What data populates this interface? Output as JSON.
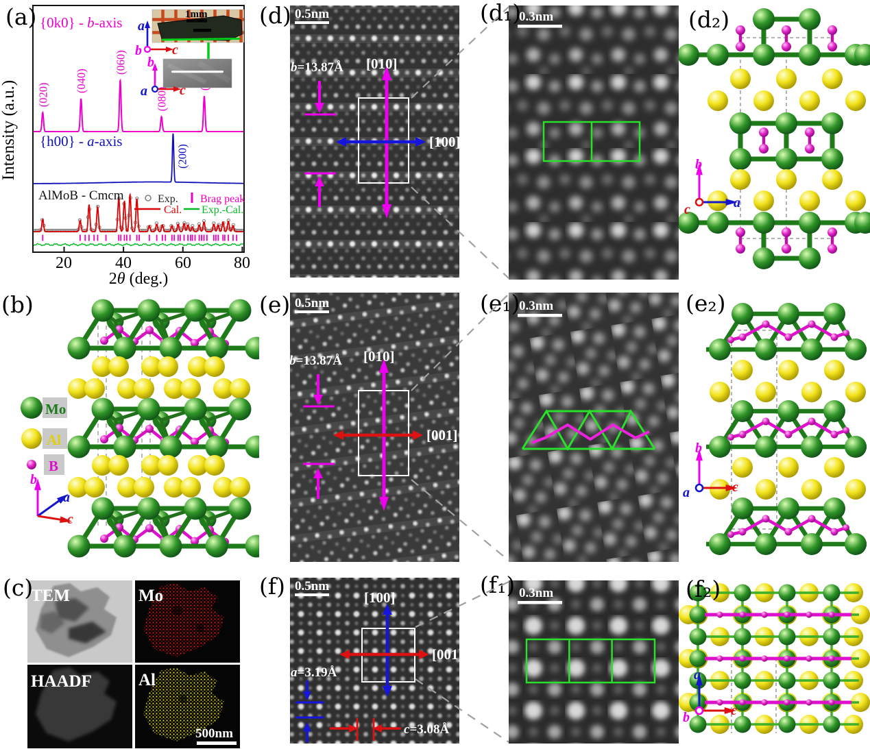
{
  "colors": {
    "mo_green": "#1e7a1e",
    "al_yellow": "#e8d818",
    "b_magenta": "#dd11cc",
    "axis_a_blue": "#1515cc",
    "axis_b_magenta": "#ee00ee",
    "axis_c_red": "#dd1111",
    "series_0k0_magenta": "#ee00cc",
    "series_h00_blue": "#1111bb",
    "cal_red": "#dd0000",
    "diff_green": "#00bb22",
    "exp_gray": "#8c8c8c",
    "overlay_green": "#2ae02a",
    "stem_text_white": "#ffffff"
  },
  "panel_a": {
    "label": "(a)",
    "ylabel": "Intensity (a.u.)",
    "xlabel": {
      "pre": "2",
      "theta": "θ",
      "post": " (deg.)"
    },
    "xticks": [
      "20",
      "40",
      "60",
      "80"
    ],
    "curve1": {
      "pre": "{0k0} - ",
      "it": "b",
      "post": "-axis"
    },
    "curve2": {
      "pre": "{h00} - ",
      "it": "a",
      "post": "-axis"
    },
    "rietveld_label": "AlMoB - Cmcm",
    "legend": {
      "exp": "Exp.",
      "bragg": "Brag peak",
      "cal": "Cal.",
      "diff": "Exp.-Cal."
    },
    "inset1": {
      "scalebar": "1mm",
      "axis_up": "a",
      "axis_origin": "b",
      "axis_right": "c"
    },
    "inset2": {
      "axis_up": "b",
      "axis_origin": "a",
      "axis_right": "c"
    }
  },
  "chart_data": {
    "type": "line",
    "title": "",
    "xlabel": "2θ (deg.)",
    "ylabel": "Intensity (a.u.)",
    "xlim": [
      10,
      80
    ],
    "grid": false,
    "legend_position": "inset bottom",
    "series": [
      {
        "name": "{0k0} - b-axis",
        "color": "#ee00cc",
        "peaks": [
          [
            12.8,
            0.37
          ],
          [
            25.7,
            0.64
          ],
          [
            38.9,
            1.0
          ],
          [
            52.8,
            0.29
          ],
          [
            67.2,
            0.69
          ]
        ],
        "peak_labels": [
          "(020)",
          "(040)",
          "(060)",
          "(080)",
          "(0100)"
        ]
      },
      {
        "name": "{h00} - a-axis",
        "color": "#1111bb",
        "peaks": [
          [
            56.7,
            1.0
          ]
        ],
        "peak_labels": [
          "(200)"
        ]
      },
      {
        "name": "AlMoB - Cmcm Rietveld Cal.",
        "color": "#dd0000",
        "peaks": [
          [
            12.8,
            0.33
          ],
          [
            25.4,
            0.3
          ],
          [
            28.4,
            0.72
          ],
          [
            31.3,
            0.66
          ],
          [
            38.4,
            0.92
          ],
          [
            40.3,
            0.82
          ],
          [
            42.2,
            1.0
          ],
          [
            44.5,
            0.88
          ],
          [
            48.7,
            0.16
          ],
          [
            51.2,
            0.2
          ],
          [
            53.1,
            0.18
          ],
          [
            56.3,
            0.16
          ],
          [
            58.4,
            0.2
          ],
          [
            60.4,
            0.22
          ],
          [
            61.7,
            0.18
          ],
          [
            63.2,
            0.13
          ],
          [
            65.5,
            0.18
          ],
          [
            67.1,
            0.26
          ],
          [
            70.4,
            0.2
          ],
          [
            71.9,
            0.18
          ],
          [
            73.5,
            0.26
          ],
          [
            75.3,
            0.28
          ],
          [
            76.9,
            0.16
          ]
        ]
      }
    ],
    "bragg_ticks": [
      12.8,
      25.4,
      27.1,
      28.4,
      30.1,
      31.3,
      34.1,
      38.4,
      39.1,
      40.3,
      41.1,
      42.2,
      44.5,
      45.3,
      48.7,
      51.2,
      53.1,
      54.1,
      56.3,
      57.1,
      58.4,
      59.1,
      60.4,
      61.7,
      62.6,
      63.2,
      64.1,
      65.5,
      66.3,
      67.1,
      68.1,
      70.4,
      71.1,
      71.9,
      73.5,
      74.1,
      75.3,
      76.9,
      78.1
    ]
  },
  "panel_b": {
    "label": "(b)",
    "legend": [
      {
        "symbol": "mo-sphere",
        "label": "Mo"
      },
      {
        "symbol": "al-sphere",
        "label": "Al"
      },
      {
        "symbol": "b-sphere",
        "label": "B"
      }
    ],
    "axes": {
      "up": "b",
      "diag": "a",
      "right": "c"
    }
  },
  "panel_c": {
    "label": "(c)",
    "images": [
      {
        "label": "TEM"
      },
      {
        "label": "Mo"
      },
      {
        "label": "HAADF"
      },
      {
        "label": "Al"
      }
    ],
    "scalebar": "500nm"
  },
  "panel_d": {
    "label": "(d)",
    "scalebar": "0.5nm",
    "dir_v": "[010]",
    "dir_h": "[100]",
    "measure": {
      "it": "b",
      "val": "=13.87Å"
    }
  },
  "panel_d1": {
    "label": "(d₁)",
    "scalebar": "0.3nm"
  },
  "panel_d2": {
    "label": "(d₂)",
    "axes": {
      "up": "b",
      "right": "a",
      "origin": "c"
    }
  },
  "panel_e": {
    "label": "(e)",
    "scalebar": "0.5nm",
    "dir_v": "[010]",
    "dir_h": "[001]",
    "measure": {
      "it": "b",
      "val": "=13.87Å"
    }
  },
  "panel_e1": {
    "label": "(e₁)",
    "scalebar": "0.3nm"
  },
  "panel_e2": {
    "label": "(e₂)",
    "axes": {
      "up": "b",
      "right": "c",
      "origin": "a"
    }
  },
  "panel_f": {
    "label": "(f)",
    "scalebar": "0.5nm",
    "dir_v": "[100]",
    "dir_h": "[001]",
    "measure_a": {
      "it": "a",
      "val": "=3.19Å"
    },
    "measure_c": {
      "it": "c",
      "val": "=3.08Å"
    }
  },
  "panel_f1": {
    "label": "(f₁)",
    "scalebar": "0.3nm"
  },
  "panel_f2": {
    "label": "(f₂)",
    "axes": {
      "up": "a",
      "right": "c",
      "origin": "b"
    }
  }
}
